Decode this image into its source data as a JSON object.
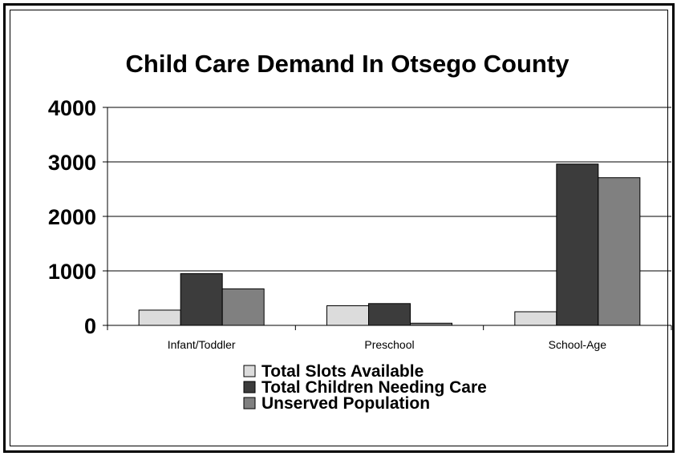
{
  "chart_data": {
    "type": "bar",
    "title": "Child Care Demand In Otsego County",
    "xlabel": "",
    "ylabel": "",
    "categories": [
      "Infant/Toddler",
      "Preschool",
      "School-Age"
    ],
    "series": [
      {
        "name": "Total Slots Available",
        "values": [
          280,
          360,
          250
        ],
        "color": "#dcdcdc"
      },
      {
        "name": "Total Children Needing Care",
        "values": [
          950,
          400,
          2960
        ],
        "color": "#3c3c3c"
      },
      {
        "name": "Unserved Population",
        "values": [
          670,
          40,
          2710
        ],
        "color": "#808080"
      }
    ],
    "ylim": [
      0,
      4000
    ],
    "yticks": [
      "0",
      "1000",
      "2000",
      "3000",
      "4000"
    ],
    "grid": true,
    "legend_position": "bottom"
  }
}
